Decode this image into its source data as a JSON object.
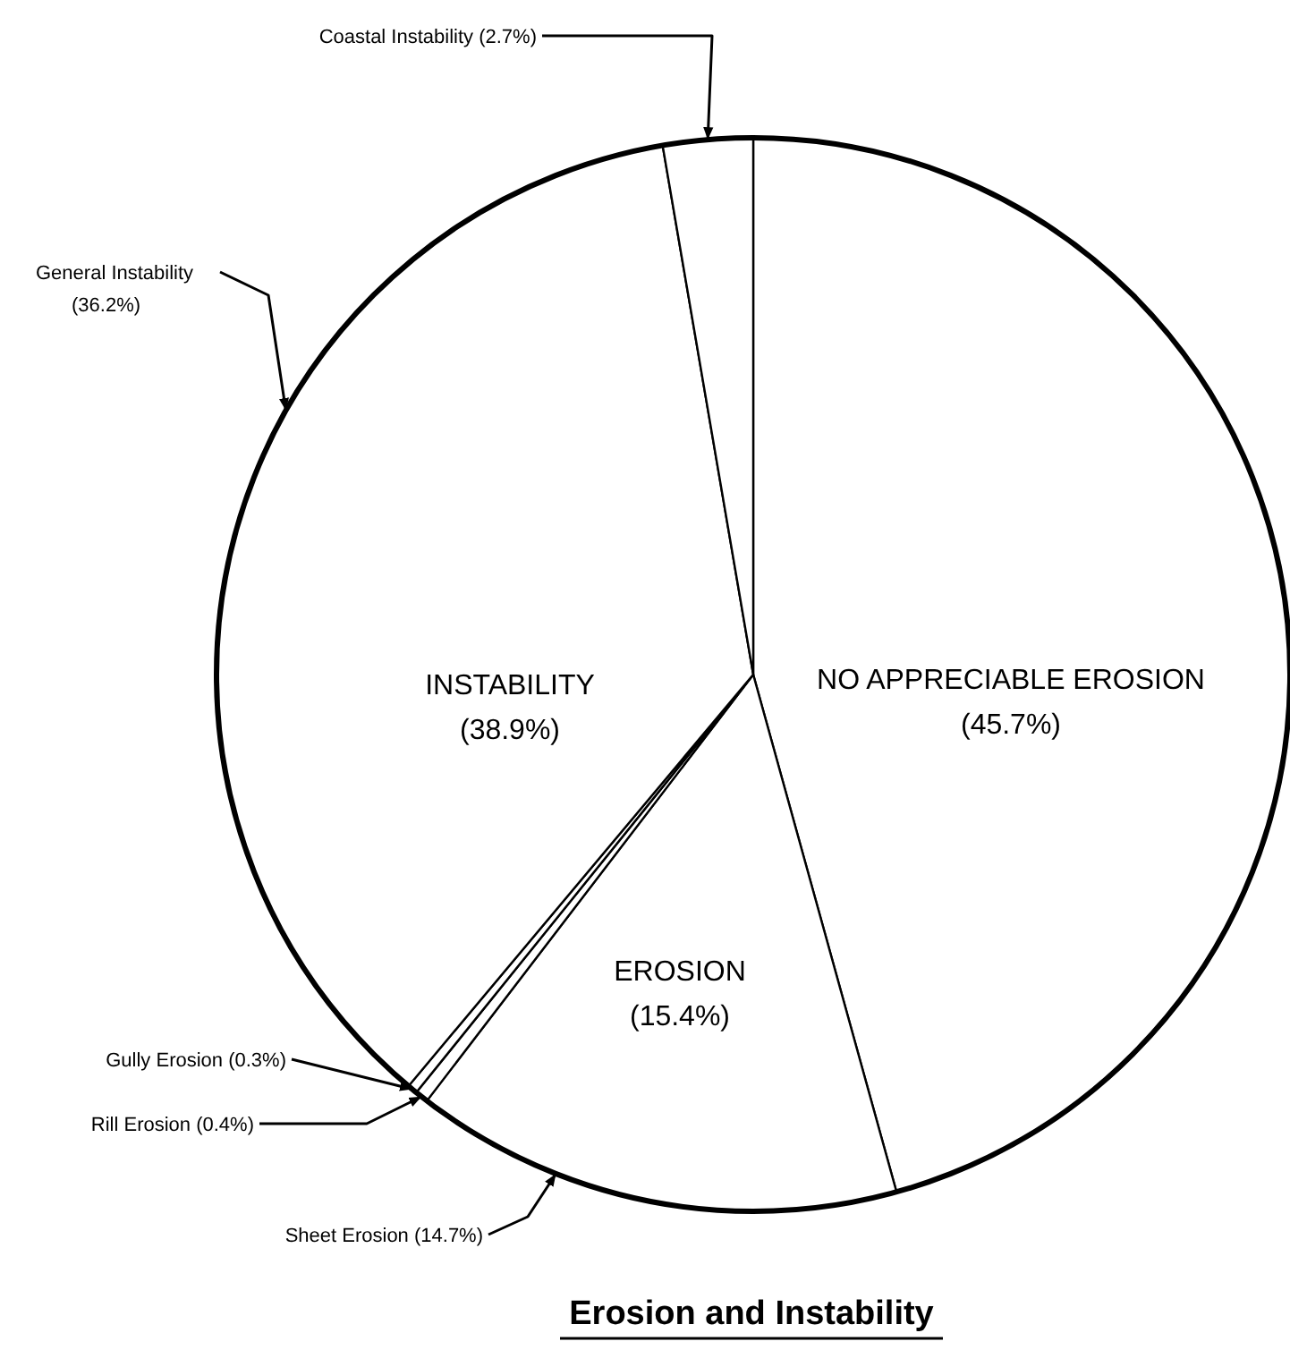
{
  "chart_data": {
    "type": "pie",
    "title": "Erosion and Instability",
    "categories": [
      "NO APPRECIABLE EROSION (45.7%)",
      "Sheet Erosion (14.7%)",
      "Rill Erosion (0.4%)",
      "Gully Erosion (0.3%)",
      "General Instability (36.2%)",
      "Coastal Instability (2.7%)"
    ],
    "values": [
      45.7,
      14.7,
      0.4,
      0.3,
      36.2,
      2.7
    ],
    "colors": [
      "#ffffff",
      "#ffffff",
      "#ffffff",
      "#ffffff",
      "#ffffff",
      "#ffffff"
    ],
    "annotations": [
      "INSTABILITY (38.9%)",
      "EROSION (15.4%)"
    ]
  }
}
